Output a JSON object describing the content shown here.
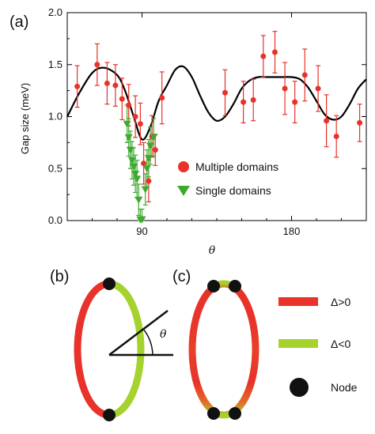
{
  "panels": {
    "a": "(a)",
    "b": "(b)",
    "c": "(c)"
  },
  "chart_data": {
    "type": "scatter",
    "xlabel": "θ",
    "ylabel": "Gap size (meV)",
    "xlim": [
      45,
      225
    ],
    "ylim": [
      0.0,
      2.0
    ],
    "x_ticks": [
      90,
      180
    ],
    "y_ticks": [
      "0.0",
      "0.5",
      "1.0",
      "1.5",
      "2.0"
    ],
    "grid": false,
    "legend_position": "lower-middle",
    "fit_curve": {
      "color": "#000000",
      "x": [
        45,
        52,
        60,
        67,
        75,
        80,
        85,
        90,
        95,
        100,
        105,
        110,
        115,
        120,
        125,
        130,
        135,
        140,
        145,
        150,
        155,
        160,
        165,
        170,
        175,
        180,
        185,
        190,
        195,
        200,
        205,
        210,
        215,
        220,
        225
      ],
      "y": [
        1.0,
        1.22,
        1.42,
        1.47,
        1.4,
        1.24,
        1.0,
        0.78,
        0.9,
        1.15,
        1.3,
        1.45,
        1.48,
        1.38,
        1.2,
        1.04,
        0.96,
        1.0,
        1.12,
        1.27,
        1.35,
        1.38,
        1.38,
        1.38,
        1.38,
        1.38,
        1.36,
        1.28,
        1.15,
        1.02,
        0.97,
        1.0,
        1.12,
        1.27,
        1.36
      ]
    },
    "series": [
      {
        "name": "Multiple domains",
        "color": "#e8322a",
        "marker": "circle",
        "points": [
          {
            "x": 51,
            "y": 1.29,
            "err": 0.2
          },
          {
            "x": 63,
            "y": 1.5,
            "err": 0.2
          },
          {
            "x": 69,
            "y": 1.32,
            "err": 0.2
          },
          {
            "x": 74,
            "y": 1.3,
            "err": 0.2
          },
          {
            "x": 78,
            "y": 1.17,
            "err": 0.2
          },
          {
            "x": 82,
            "y": 1.11,
            "err": 0.2
          },
          {
            "x": 86,
            "y": 1.0,
            "err": 0.2
          },
          {
            "x": 89,
            "y": 0.93,
            "err": 0.2
          },
          {
            "x": 91,
            "y": 0.55,
            "err": 0.2
          },
          {
            "x": 94,
            "y": 0.38,
            "err": 0.2
          },
          {
            "x": 96,
            "y": 0.81,
            "err": 0.2
          },
          {
            "x": 98,
            "y": 0.68,
            "err": 0.15
          },
          {
            "x": 102,
            "y": 1.18,
            "err": 0.25
          },
          {
            "x": 140,
            "y": 1.23,
            "err": 0.22
          },
          {
            "x": 151,
            "y": 1.14,
            "err": 0.2
          },
          {
            "x": 157,
            "y": 1.16,
            "err": 0.2
          },
          {
            "x": 163,
            "y": 1.58,
            "err": 0.2
          },
          {
            "x": 170,
            "y": 1.62,
            "err": 0.2
          },
          {
            "x": 176,
            "y": 1.27,
            "err": 0.25
          },
          {
            "x": 182,
            "y": 1.14,
            "err": 0.2
          },
          {
            "x": 188,
            "y": 1.4,
            "err": 0.25
          },
          {
            "x": 196,
            "y": 1.27,
            "err": 0.22
          },
          {
            "x": 201,
            "y": 0.96,
            "err": 0.25
          },
          {
            "x": 207,
            "y": 0.81,
            "err": 0.2
          },
          {
            "x": 221,
            "y": 0.94,
            "err": 0.18
          }
        ]
      },
      {
        "name": "Single domains",
        "color": "#3fa92f",
        "marker": "triangle-down",
        "points": [
          {
            "x": 81,
            "y": 0.93,
            "err": 0.18
          },
          {
            "x": 82,
            "y": 0.8,
            "err": 0.18
          },
          {
            "x": 83,
            "y": 0.68,
            "err": 0.18
          },
          {
            "x": 84,
            "y": 0.58,
            "err": 0.18
          },
          {
            "x": 85,
            "y": 0.52,
            "err": 0.18
          },
          {
            "x": 86,
            "y": 0.45,
            "err": 0.18
          },
          {
            "x": 87,
            "y": 0.4,
            "err": 0.18
          },
          {
            "x": 88,
            "y": 0.2,
            "err": 0.15
          },
          {
            "x": 89,
            "y": 0.01,
            "err": 0.1
          },
          {
            "x": 90,
            "y": 0.01,
            "err": 0.1
          },
          {
            "x": 92,
            "y": 0.3,
            "err": 0.15
          },
          {
            "x": 93,
            "y": 0.5,
            "err": 0.18
          },
          {
            "x": 94,
            "y": 0.6,
            "err": 0.18
          },
          {
            "x": 95,
            "y": 0.72,
            "err": 0.18
          },
          {
            "x": 97,
            "y": 0.8,
            "err": 0.18
          }
        ]
      }
    ]
  },
  "diagram": {
    "theta_label": "θ",
    "legend": [
      {
        "label": "Δ>0",
        "color": "#e8322a",
        "kind": "bar"
      },
      {
        "label": "Δ<0",
        "color": "#a5d22c",
        "kind": "bar"
      },
      {
        "label": "Node",
        "color": "#111111",
        "kind": "dot"
      }
    ]
  }
}
